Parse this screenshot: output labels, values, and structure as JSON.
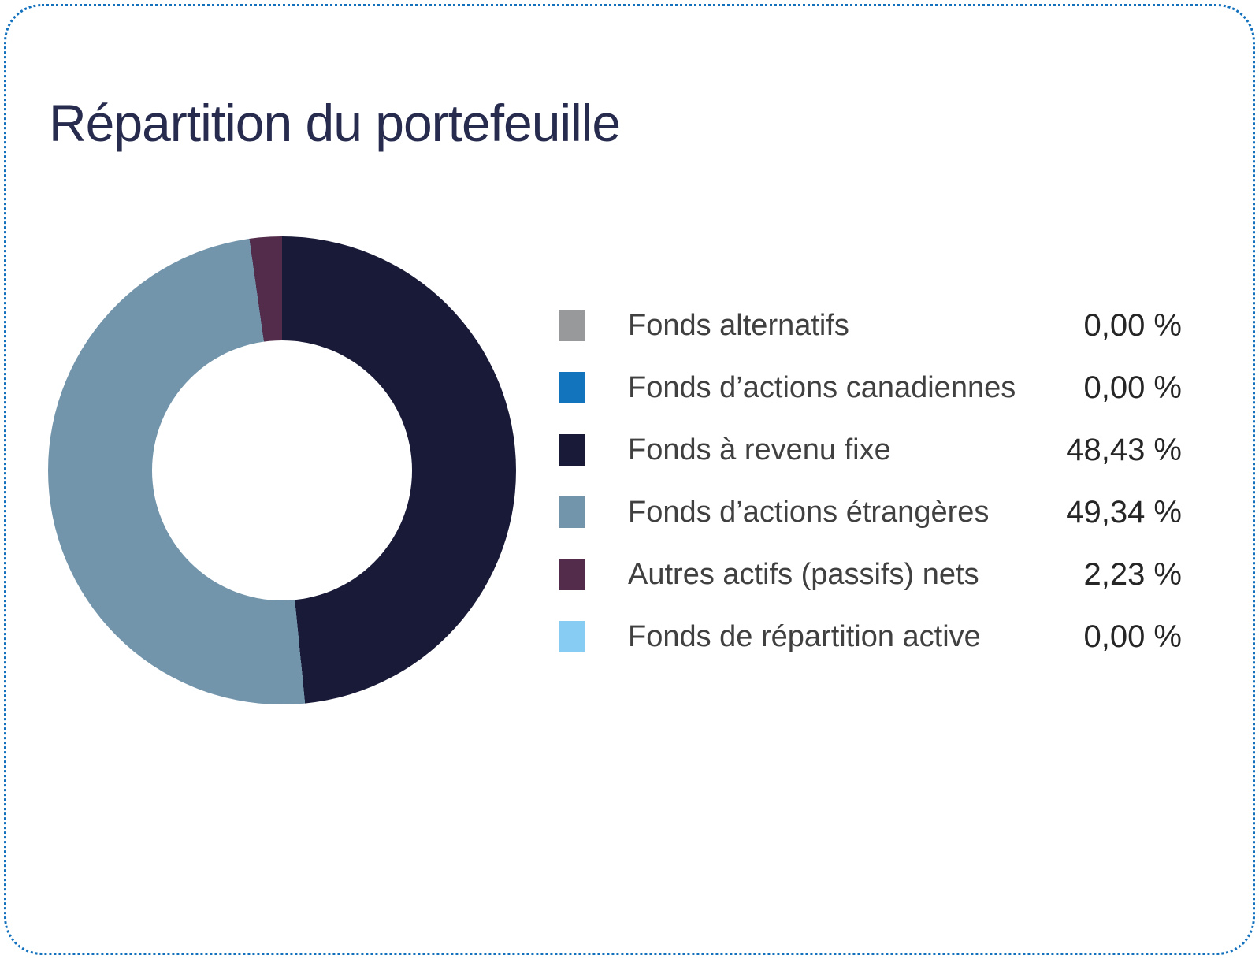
{
  "card": {
    "title": "Répartition du portefeuille",
    "border_color": "#1270bd",
    "background": "#ffffff",
    "title_color": "#272c4f"
  },
  "chart_data": {
    "type": "pie",
    "subtype": "donut",
    "title": "Répartition du portefeuille",
    "legend_position": "right",
    "start_angle_deg": 0,
    "direction": "clockwise",
    "inner_radius_ratio": 0.555,
    "value_unit": "%",
    "series": [
      {
        "label": "Fonds alternatifs",
        "value_pct": 0.0,
        "display": "0,00 %",
        "color": "#98999b"
      },
      {
        "label": "Fonds d’actions canadiennes",
        "value_pct": 0.0,
        "display": "0,00 %",
        "color": "#1274bd"
      },
      {
        "label": "Fonds à revenu fixe",
        "value_pct": 48.43,
        "display": "48,43 %",
        "color": "#191a38"
      },
      {
        "label": "Fonds d’actions étrangères",
        "value_pct": 49.34,
        "display": "49,34 %",
        "color": "#7395ab"
      },
      {
        "label": "Autres actifs (passifs) nets",
        "value_pct": 2.23,
        "display": "2,23 %",
        "color": "#532c4b"
      },
      {
        "label": "Fonds de répartition active",
        "value_pct": 0.0,
        "display": "0,00 %",
        "color": "#87ccf3"
      }
    ]
  }
}
